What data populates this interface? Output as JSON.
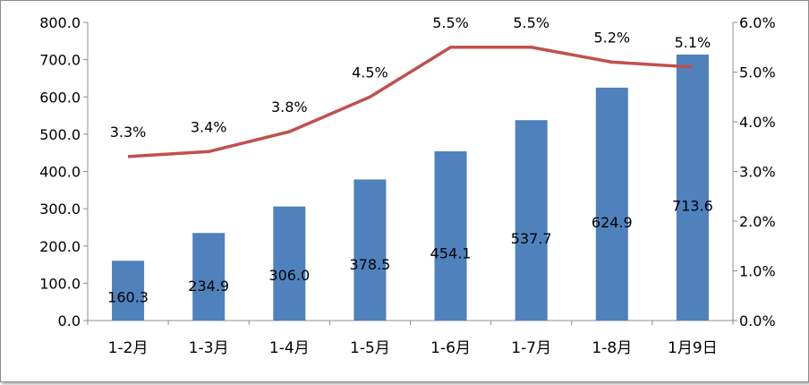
{
  "chart_data": {
    "type": "bar",
    "categories": [
      "1-2月",
      "1-3月",
      "1-4月",
      "1-5月",
      "1-6月",
      "1-7月",
      "1-8月",
      "1月9日"
    ],
    "series": [
      {
        "type": "bar",
        "axis": "left",
        "values": [
          160.3,
          234.9,
          306.0,
          378.5,
          454.1,
          537.7,
          624.9,
          713.6
        ],
        "labels": [
          "160.3",
          "234.9",
          "306.0",
          "378.5",
          "454.1",
          "537.7",
          "624.9",
          "713.6"
        ],
        "color": "#4F81BD"
      },
      {
        "type": "line",
        "axis": "right",
        "values": [
          3.3,
          3.4,
          3.8,
          4.5,
          5.5,
          5.5,
          5.2,
          5.1
        ],
        "labels": [
          "3.3%",
          "3.4%",
          "3.8%",
          "4.5%",
          "5.5%",
          "5.5%",
          "5.2%",
          "5.1%"
        ],
        "color": "#C0504D"
      }
    ],
    "y_left": {
      "ylim": [
        0,
        800
      ],
      "ticks": [
        "0.0",
        "100.0",
        "200.0",
        "300.0",
        "400.0",
        "500.0",
        "600.0",
        "700.0",
        "800.0"
      ]
    },
    "y_right": {
      "ylim": [
        0,
        6
      ],
      "ticks": [
        "0.0%",
        "1.0%",
        "2.0%",
        "3.0%",
        "4.0%",
        "5.0%",
        "6.0%"
      ]
    },
    "grid": false,
    "legend": "none"
  }
}
